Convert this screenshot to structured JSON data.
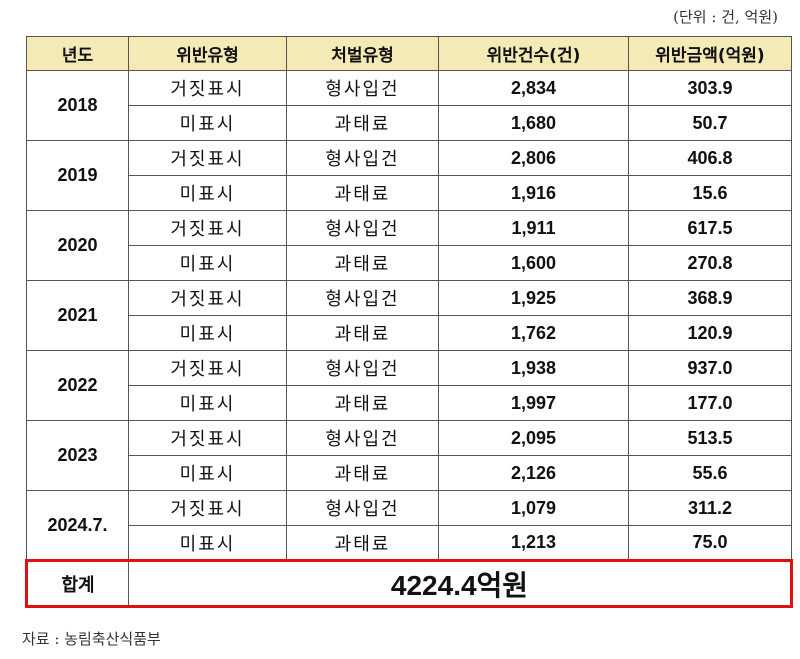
{
  "unit_note": "(단위 : 건, 억원)",
  "headers": [
    "년도",
    "위반유형",
    "처벌유형",
    "위반건수(건)",
    "위반금액(억원)"
  ],
  "rows": [
    {
      "year": "2018",
      "items": [
        {
          "type": "거짓표시",
          "penalty": "형사입건",
          "count": "2,834",
          "amount": "303.9"
        },
        {
          "type": "미표시",
          "penalty": "과태료",
          "count": "1,680",
          "amount": "50.7"
        }
      ]
    },
    {
      "year": "2019",
      "items": [
        {
          "type": "거짓표시",
          "penalty": "형사입건",
          "count": "2,806",
          "amount": "406.8"
        },
        {
          "type": "미표시",
          "penalty": "과태료",
          "count": "1,916",
          "amount": "15.6"
        }
      ]
    },
    {
      "year": "2020",
      "items": [
        {
          "type": "거짓표시",
          "penalty": "형사입건",
          "count": "1,911",
          "amount": "617.5"
        },
        {
          "type": "미표시",
          "penalty": "과태료",
          "count": "1,600",
          "amount": "270.8"
        }
      ]
    },
    {
      "year": "2021",
      "items": [
        {
          "type": "거짓표시",
          "penalty": "형사입건",
          "count": "1,925",
          "amount": "368.9"
        },
        {
          "type": "미표시",
          "penalty": "과태료",
          "count": "1,762",
          "amount": "120.9"
        }
      ]
    },
    {
      "year": "2022",
      "items": [
        {
          "type": "거짓표시",
          "penalty": "형사입건",
          "count": "1,938",
          "amount": "937.0"
        },
        {
          "type": "미표시",
          "penalty": "과태료",
          "count": "1,997",
          "amount": "177.0"
        }
      ]
    },
    {
      "year": "2023",
      "items": [
        {
          "type": "거짓표시",
          "penalty": "형사입건",
          "count": "2,095",
          "amount": "513.5"
        },
        {
          "type": "미표시",
          "penalty": "과태료",
          "count": "2,126",
          "amount": "55.6"
        }
      ]
    },
    {
      "year": "2024.7.",
      "items": [
        {
          "type": "거짓표시",
          "penalty": "형사입건",
          "count": "1,079",
          "amount": "311.2"
        },
        {
          "type": "미표시",
          "penalty": "과태료",
          "count": "1,213",
          "amount": "75.0"
        }
      ]
    }
  ],
  "total": {
    "label": "합계",
    "value": "4224.4억원"
  },
  "source": "자료 : 농림축산식품부",
  "colors": {
    "header_bg": "#f4eab6",
    "highlight_border": "#e01010"
  }
}
